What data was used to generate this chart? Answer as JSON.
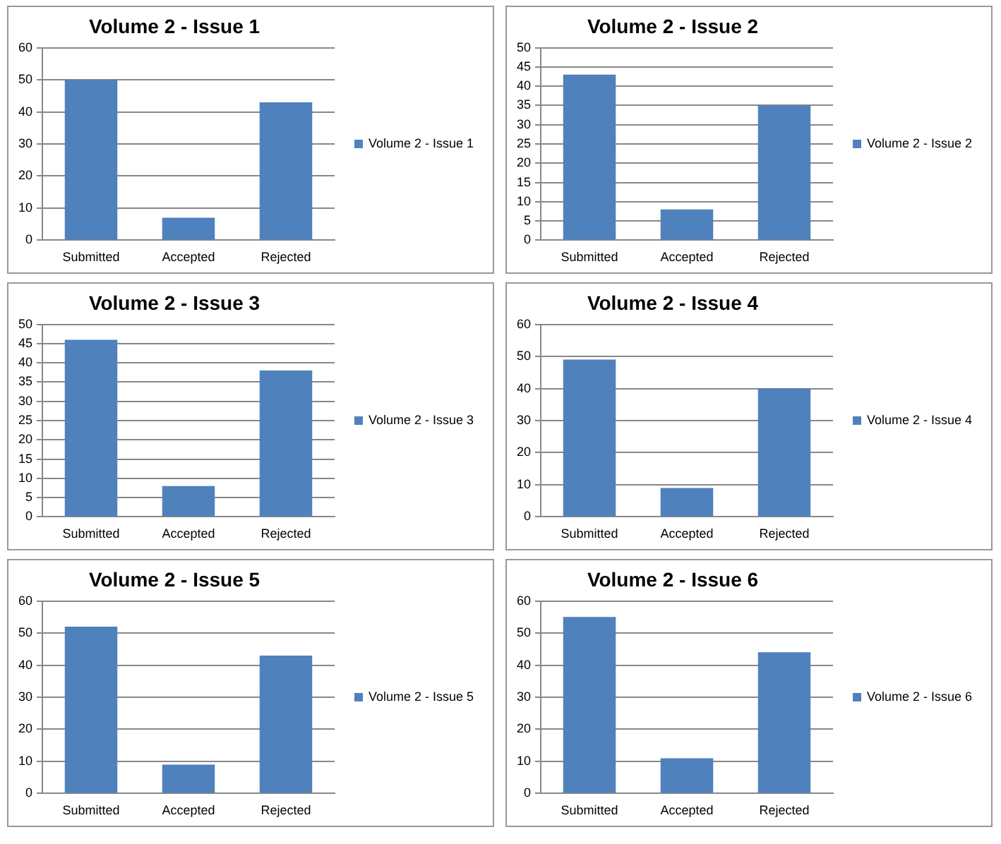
{
  "chart_data": [
    {
      "type": "bar",
      "title": "Volume 2 - Issue 1",
      "categories": [
        "Submitted",
        "Accepted",
        "Rejected"
      ],
      "series": [
        {
          "name": "Volume 2 - Issue 1",
          "color": "#4f81bd",
          "values": [
            50,
            7,
            43
          ]
        }
      ],
      "ylim": [
        0,
        60
      ],
      "yticks": [
        0,
        10,
        20,
        30,
        40,
        50,
        60
      ],
      "grid": "y",
      "legend": "right"
    },
    {
      "type": "bar",
      "title": "Volume 2 - Issue 2",
      "categories": [
        "Submitted",
        "Accepted",
        "Rejected"
      ],
      "series": [
        {
          "name": "Volume 2 - Issue 2",
          "color": "#4f81bd",
          "values": [
            43,
            8,
            35
          ]
        }
      ],
      "ylim": [
        0,
        50
      ],
      "yticks": [
        0,
        5,
        10,
        15,
        20,
        25,
        30,
        35,
        40,
        45,
        50
      ],
      "grid": "y",
      "legend": "right"
    },
    {
      "type": "bar",
      "title": "Volume 2 - Issue 3",
      "categories": [
        "Submitted",
        "Accepted",
        "Rejected"
      ],
      "series": [
        {
          "name": "Volume 2 - Issue 3",
          "color": "#4f81bd",
          "values": [
            46,
            8,
            38
          ]
        }
      ],
      "ylim": [
        0,
        50
      ],
      "yticks": [
        0,
        5,
        10,
        15,
        20,
        25,
        30,
        35,
        40,
        45,
        50
      ],
      "grid": "y",
      "legend": "right"
    },
    {
      "type": "bar",
      "title": "Volume 2 - Issue 4",
      "categories": [
        "Submitted",
        "Accepted",
        "Rejected"
      ],
      "series": [
        {
          "name": "Volume 2 - Issue 4",
          "color": "#4f81bd",
          "values": [
            49,
            9,
            40
          ]
        }
      ],
      "ylim": [
        0,
        60
      ],
      "yticks": [
        0,
        10,
        20,
        30,
        40,
        50,
        60
      ],
      "grid": "y",
      "legend": "right"
    },
    {
      "type": "bar",
      "title": "Volume 2 - Issue 5",
      "categories": [
        "Submitted",
        "Accepted",
        "Rejected"
      ],
      "series": [
        {
          "name": "Volume 2 - Issue 5",
          "color": "#4f81bd",
          "values": [
            52,
            9,
            43
          ]
        }
      ],
      "ylim": [
        0,
        60
      ],
      "yticks": [
        0,
        10,
        20,
        30,
        40,
        50,
        60
      ],
      "grid": "y",
      "legend": "right"
    },
    {
      "type": "bar",
      "title": "Volume 2 - Issue 6",
      "categories": [
        "Submitted",
        "Accepted",
        "Rejected"
      ],
      "series": [
        {
          "name": "Volume 2 - Issue 6",
          "color": "#4f81bd",
          "values": [
            55,
            11,
            44
          ]
        }
      ],
      "ylim": [
        0,
        60
      ],
      "yticks": [
        0,
        10,
        20,
        30,
        40,
        50,
        60
      ],
      "grid": "y",
      "legend": "right"
    }
  ]
}
